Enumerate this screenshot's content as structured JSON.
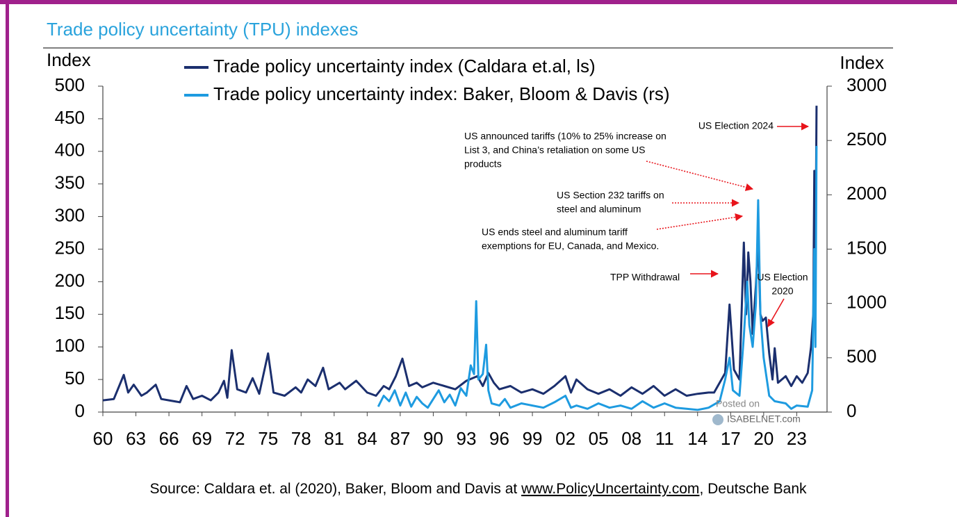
{
  "chart_data": {
    "type": "line",
    "title": "Trade policy uncertainty (TPU) indexes",
    "ylabel": "Index",
    "y2label": "Index",
    "xlim": [
      1960,
      2025.5
    ],
    "xticks": [
      {
        "value": 1960,
        "label": "60"
      },
      {
        "value": 1963,
        "label": "63"
      },
      {
        "value": 1966,
        "label": "66"
      },
      {
        "value": 1969,
        "label": "69"
      },
      {
        "value": 1972,
        "label": "72"
      },
      {
        "value": 1975,
        "label": "75"
      },
      {
        "value": 1978,
        "label": "78"
      },
      {
        "value": 1981,
        "label": "81"
      },
      {
        "value": 1984,
        "label": "84"
      },
      {
        "value": 1987,
        "label": "87"
      },
      {
        "value": 1990,
        "label": "90"
      },
      {
        "value": 1993,
        "label": "93"
      },
      {
        "value": 1996,
        "label": "96"
      },
      {
        "value": 1999,
        "label": "99"
      },
      {
        "value": 2002,
        "label": "02"
      },
      {
        "value": 2005,
        "label": "05"
      },
      {
        "value": 2008,
        "label": "08"
      },
      {
        "value": 2011,
        "label": "11"
      },
      {
        "value": 2014,
        "label": "14"
      },
      {
        "value": 2017,
        "label": "17"
      },
      {
        "value": 2020,
        "label": "20"
      },
      {
        "value": 2023,
        "label": "23"
      }
    ],
    "ylim": [
      0,
      500
    ],
    "yticks": [
      0,
      50,
      100,
      150,
      200,
      250,
      300,
      350,
      400,
      450,
      500
    ],
    "y2lim": [
      0,
      3000
    ],
    "y2ticks": [
      0,
      500,
      1000,
      1500,
      2000,
      2500,
      3000
    ],
    "series": [
      {
        "name": "Trade policy uncertainty index (Caldara et.al, ls)",
        "color": "#1b2f6e",
        "x": [
          1960,
          1961,
          1961.9,
          1962.3,
          1962.8,
          1963.5,
          1964,
          1964.8,
          1965.3,
          1966,
          1967,
          1967.6,
          1968.2,
          1969,
          1969.8,
          1970.5,
          1971,
          1971.3,
          1971.7,
          1972.2,
          1973,
          1973.6,
          1974.2,
          1975,
          1975.5,
          1976.5,
          1977.5,
          1978,
          1978.6,
          1979.3,
          1980,
          1980.5,
          1981.5,
          1982,
          1983,
          1984,
          1984.8,
          1985.5,
          1986,
          1986.6,
          1987.2,
          1987.8,
          1988.5,
          1989,
          1990,
          1991,
          1992,
          1993,
          1994,
          1994.5,
          1995,
          1995.5,
          1996,
          1997,
          1998,
          1999,
          2000,
          2001,
          2002,
          2002.5,
          2003,
          2004,
          2005,
          2006,
          2007,
          2008,
          2009,
          2010,
          2011,
          2012,
          2013,
          2014,
          2015,
          2015.5,
          2016,
          2016.5,
          2016.9,
          2017.3,
          2017.8,
          2018.2,
          2018.4,
          2018.6,
          2018.8,
          2019,
          2019.3,
          2019.5,
          2019.7,
          2019.9,
          2020.2,
          2020.5,
          2020.8,
          2021,
          2021.3,
          2022,
          2022.5,
          2023,
          2023.5,
          2024,
          2024.3,
          2024.5,
          2024.6,
          2024.7,
          2024.8
        ],
        "values": [
          18,
          20,
          57,
          30,
          42,
          25,
          30,
          42,
          20,
          18,
          15,
          40,
          20,
          25,
          18,
          30,
          48,
          22,
          95,
          35,
          30,
          52,
          28,
          90,
          30,
          25,
          38,
          30,
          50,
          40,
          68,
          35,
          45,
          35,
          48,
          30,
          25,
          40,
          35,
          55,
          82,
          40,
          45,
          38,
          45,
          40,
          35,
          48,
          55,
          40,
          60,
          45,
          35,
          40,
          30,
          35,
          28,
          40,
          55,
          30,
          50,
          35,
          28,
          35,
          25,
          38,
          28,
          40,
          25,
          35,
          25,
          28,
          30,
          30,
          45,
          60,
          165,
          65,
          50,
          260,
          150,
          245,
          200,
          120,
          195,
          265,
          150,
          140,
          145,
          90,
          50,
          98,
          45,
          55,
          40,
          55,
          45,
          60,
          100,
          150,
          370,
          200,
          470
        ]
      },
      {
        "name": "Trade policy uncertainty index: Baker, Bloom & Davis (rs)",
        "color": "#1e9be0",
        "axis": "y2",
        "x": [
          1985,
          1985.5,
          1986,
          1986.5,
          1987,
          1987.5,
          1988,
          1988.5,
          1989,
          1989.5,
          1990,
          1990.5,
          1991,
          1991.5,
          1992,
          1992.5,
          1993,
          1993.4,
          1993.7,
          1993.9,
          1994.1,
          1994.5,
          1994.8,
          1995,
          1995.3,
          1996,
          1996.5,
          1997,
          1998,
          1999,
          2000,
          2001,
          2002,
          2002.5,
          2003,
          2004,
          2005,
          2006,
          2007,
          2008,
          2009,
          2010,
          2011,
          2012,
          2013,
          2014,
          2015,
          2016,
          2016.5,
          2016.9,
          2017.2,
          2017.8,
          2018.2,
          2018.5,
          2018.7,
          2019,
          2019.3,
          2019.5,
          2019.7,
          2020,
          2020.5,
          2021,
          2022,
          2022.5,
          2023,
          2024,
          2024.4,
          2024.6,
          2024.7,
          2024.8
        ],
        "values": [
          50,
          150,
          100,
          200,
          60,
          180,
          50,
          140,
          80,
          40,
          120,
          200,
          90,
          160,
          60,
          220,
          150,
          430,
          350,
          1020,
          300,
          350,
          620,
          200,
          80,
          60,
          120,
          40,
          80,
          60,
          40,
          90,
          150,
          40,
          60,
          30,
          80,
          40,
          60,
          30,
          100,
          40,
          80,
          40,
          30,
          20,
          40,
          100,
          300,
          500,
          200,
          150,
          700,
          1200,
          800,
          600,
          1000,
          1950,
          900,
          500,
          150,
          100,
          80,
          30,
          60,
          50,
          200,
          1500,
          600,
          2450
        ]
      }
    ],
    "annotations": [
      {
        "lines": [
          "US Election 2024"
        ]
      },
      {
        "lines": [
          "US announced tariffs (10% to 25% increase on",
          "List 3, and China’s retaliation on some US",
          "products"
        ]
      },
      {
        "lines": [
          "US Section 232 tariffs on",
          "steel and aluminum"
        ]
      },
      {
        "lines": [
          "US ends steel and aluminum tariff",
          "exemptions for EU, Canada, and Mexico."
        ]
      },
      {
        "lines": [
          "TPP Withdrawal"
        ]
      },
      {
        "lines": [
          "US Election",
          "2020"
        ]
      }
    ],
    "watermark": [
      "Posted on",
      "ISABELNET.com"
    ],
    "source": {
      "before": "Source: Caldara et. al (2020), Baker, Bloom and Davis at ",
      "link": "www.PolicyUncertainty.com",
      "after": ", Deutsche Bank"
    }
  }
}
